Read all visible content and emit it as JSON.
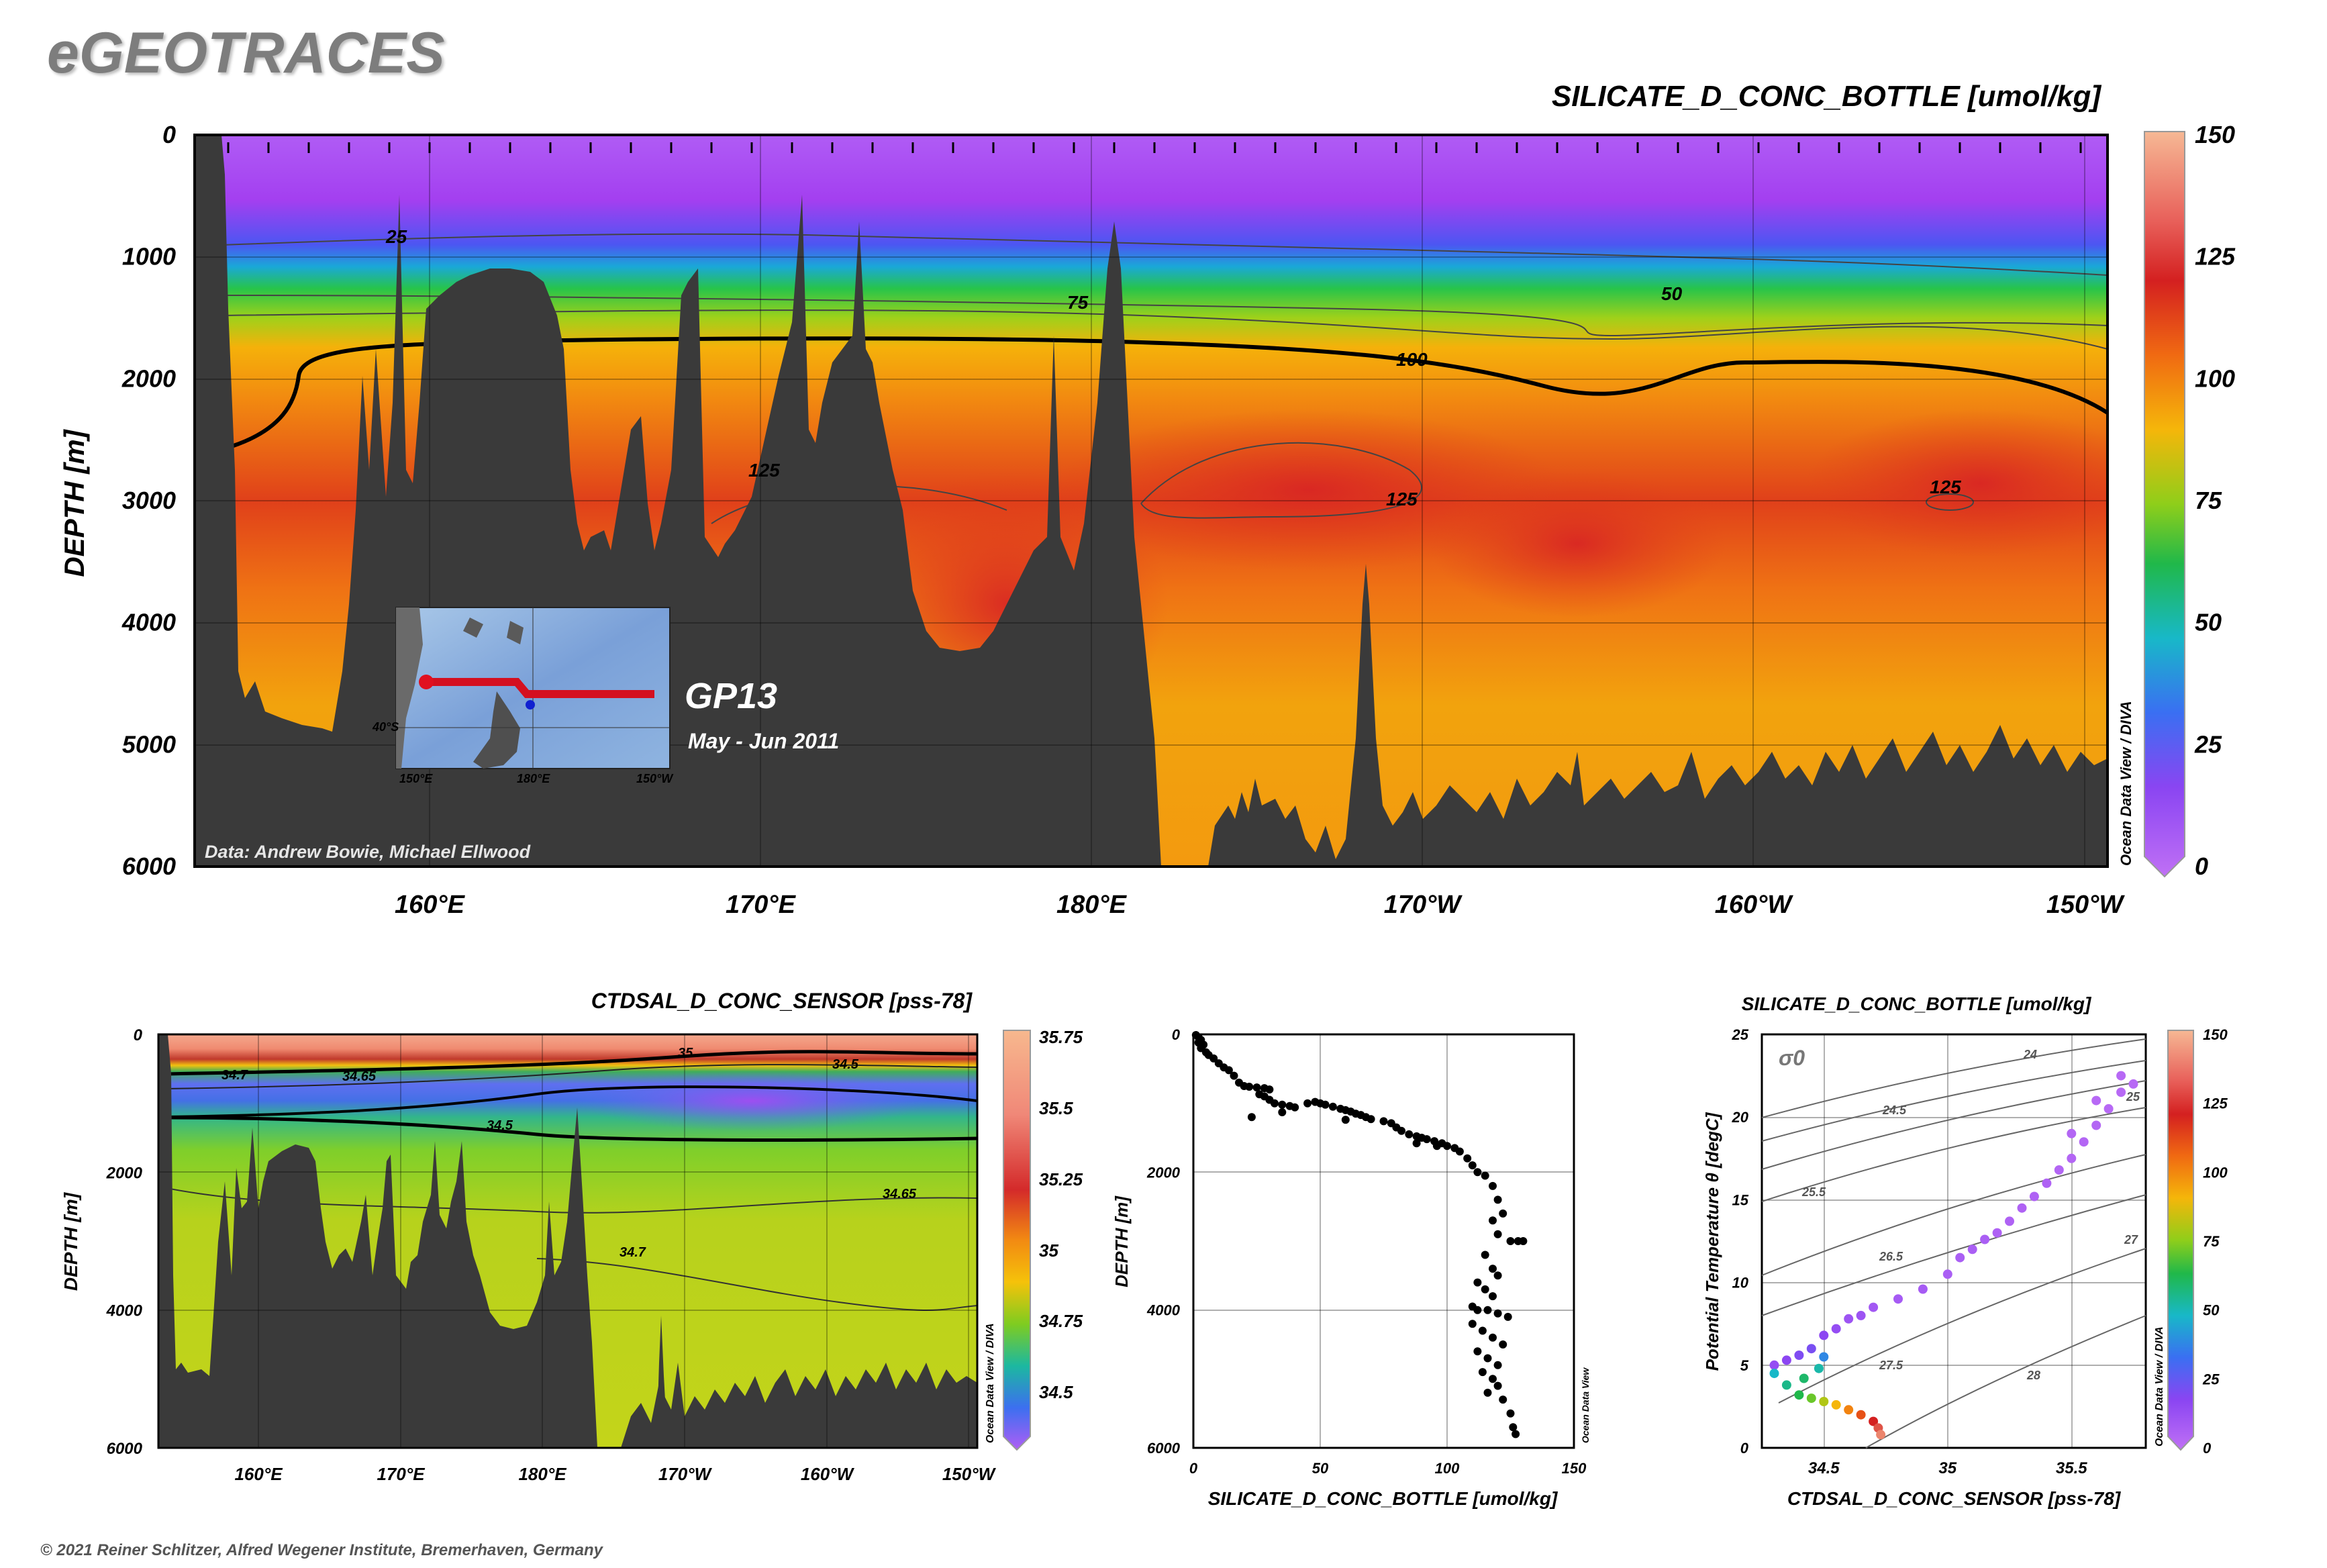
{
  "brand": {
    "logo_text": "eGEOTRACES"
  },
  "footer": {
    "copyright": "© 2021 Reiner Schlitzer, Alfred Wegener Institute, Bremerhaven, Germany"
  },
  "colors": {
    "land": "#3a3a3a",
    "background": "#ffffff",
    "frame": "#000000"
  },
  "chart_data": [
    {
      "id": "silicate_section",
      "type": "heatmap",
      "title": "SILICATE_D_CONC_BOTTLE [umol/kg]",
      "ylabel": "DEPTH [m]",
      "xlabel": "",
      "x_ticks": [
        "160°E",
        "170°E",
        "180°E",
        "170°W",
        "160°W",
        "150°W"
      ],
      "y_ticks": [
        "0",
        "1000",
        "2000",
        "3000",
        "4000",
        "5000",
        "6000"
      ],
      "ylim": [
        6000,
        0
      ],
      "colorbar": {
        "ticks": [
          "150",
          "125",
          "100",
          "75",
          "50",
          "25",
          "0"
        ],
        "range": [
          0,
          150
        ]
      },
      "contour_labels": [
        "25",
        "50",
        "75",
        "100",
        "125",
        "125",
        "125"
      ],
      "credit": "Data: Andrew Bowie, Michael Ellwood",
      "watermark": "Ocean Data View / DIVA",
      "inset": {
        "cruise": "GP13",
        "dates": "May - Jun 2011",
        "lat_label": "40°S",
        "lon_labels": [
          "150°E",
          "180°E",
          "150°W"
        ]
      }
    },
    {
      "id": "salinity_section",
      "type": "heatmap",
      "title": "CTDSAL_D_CONC_SENSOR [pss-78]",
      "ylabel": "DEPTH [m]",
      "x_ticks": [
        "160°E",
        "170°E",
        "180°E",
        "170°W",
        "160°W",
        "150°W"
      ],
      "y_ticks": [
        "0",
        "2000",
        "4000",
        "6000"
      ],
      "ylim": [
        6000,
        0
      ],
      "colorbar": {
        "ticks": [
          "35.75",
          "35.5",
          "35.25",
          "35",
          "34.75",
          "34.5"
        ],
        "range": [
          34.3,
          35.75
        ]
      },
      "contour_labels": [
        "35",
        "34.7",
        "34.65",
        "34.5",
        "34.5",
        "34.65",
        "34.7"
      ],
      "watermark": "Ocean Data View / DIVA"
    },
    {
      "id": "silicate_profile",
      "type": "scatter",
      "xlabel": "SILICATE_D_CONC_BOTTLE [umol/kg]",
      "ylabel": "DEPTH [m]",
      "x_ticks": [
        "0",
        "50",
        "100",
        "150"
      ],
      "y_ticks": [
        "0",
        "2000",
        "4000",
        "6000"
      ],
      "xlim": [
        0,
        150
      ],
      "ylim": [
        6000,
        0
      ],
      "watermark": "Ocean Data View",
      "points": [
        [
          1,
          10
        ],
        [
          2,
          40
        ],
        [
          3,
          80
        ],
        [
          2,
          120
        ],
        [
          4,
          150
        ],
        [
          3,
          200
        ],
        [
          5,
          260
        ],
        [
          6,
          300
        ],
        [
          8,
          350
        ],
        [
          10,
          420
        ],
        [
          12,
          480
        ],
        [
          14,
          520
        ],
        [
          16,
          600
        ],
        [
          18,
          700
        ],
        [
          20,
          750
        ],
        [
          22,
          760
        ],
        [
          25,
          770
        ],
        [
          28,
          780
        ],
        [
          30,
          800
        ],
        [
          26,
          870
        ],
        [
          28,
          900
        ],
        [
          30,
          950
        ],
        [
          32,
          1000
        ],
        [
          35,
          1020
        ],
        [
          38,
          1040
        ],
        [
          40,
          1060
        ],
        [
          45,
          1000
        ],
        [
          48,
          980
        ],
        [
          50,
          1000
        ],
        [
          52,
          1020
        ],
        [
          55,
          1050
        ],
        [
          58,
          1080
        ],
        [
          60,
          1100
        ],
        [
          62,
          1120
        ],
        [
          64,
          1150
        ],
        [
          66,
          1170
        ],
        [
          68,
          1200
        ],
        [
          70,
          1230
        ],
        [
          75,
          1260
        ],
        [
          78,
          1290
        ],
        [
          80,
          1350
        ],
        [
          82,
          1400
        ],
        [
          85,
          1450
        ],
        [
          88,
          1480
        ],
        [
          90,
          1500
        ],
        [
          92,
          1520
        ],
        [
          95,
          1550
        ],
        [
          98,
          1580
        ],
        [
          100,
          1620
        ],
        [
          103,
          1650
        ],
        [
          105,
          1700
        ],
        [
          108,
          1800
        ],
        [
          110,
          1900
        ],
        [
          112,
          2000
        ],
        [
          115,
          2050
        ],
        [
          118,
          2200
        ],
        [
          120,
          2400
        ],
        [
          122,
          2600
        ],
        [
          118,
          2700
        ],
        [
          120,
          2900
        ],
        [
          125,
          3000
        ],
        [
          128,
          3000
        ],
        [
          130,
          3000
        ],
        [
          115,
          3200
        ],
        [
          118,
          3400
        ],
        [
          120,
          3500
        ],
        [
          112,
          3600
        ],
        [
          115,
          3700
        ],
        [
          118,
          3800
        ],
        [
          110,
          3950
        ],
        [
          112,
          4000
        ],
        [
          116,
          4000
        ],
        [
          120,
          4050
        ],
        [
          124,
          4100
        ],
        [
          110,
          4200
        ],
        [
          114,
          4300
        ],
        [
          118,
          4400
        ],
        [
          122,
          4500
        ],
        [
          112,
          4600
        ],
        [
          116,
          4700
        ],
        [
          120,
          4800
        ],
        [
          114,
          4900
        ],
        [
          118,
          5000
        ],
        [
          120,
          5100
        ],
        [
          116,
          5200
        ],
        [
          122,
          5300
        ],
        [
          125,
          5500
        ],
        [
          126,
          5700
        ],
        [
          127,
          5800
        ],
        [
          23,
          1200
        ],
        [
          35,
          1130
        ],
        [
          60,
          1240
        ],
        [
          88,
          1580
        ],
        [
          96,
          1620
        ]
      ]
    },
    {
      "id": "ts_diagram",
      "type": "scatter",
      "title": "SILICATE_D_CONC_BOTTLE [umol/kg]",
      "xlabel": "CTDSAL_D_CONC_SENSOR [pss-78]",
      "ylabel": "Potential Temperature θ [degC]",
      "sigma_label": "σ0",
      "x_ticks": [
        "34.5",
        "35",
        "35.5"
      ],
      "y_ticks": [
        "0",
        "5",
        "10",
        "15",
        "20",
        "25"
      ],
      "xlim": [
        34.25,
        35.8
      ],
      "ylim": [
        0,
        25
      ],
      "isopycnal_labels": [
        "24",
        "24.5",
        "25",
        "25.5",
        "26.5",
        "27",
        "27.5",
        "28"
      ],
      "colorbar": {
        "ticks": [
          "150",
          "125",
          "100",
          "75",
          "50",
          "25",
          "0"
        ],
        "range": [
          0,
          150
        ]
      },
      "watermark": "Ocean Data View / DIVA",
      "points": [
        [
          34.3,
          5.0,
          10
        ],
        [
          34.35,
          5.3,
          12
        ],
        [
          34.4,
          5.6,
          14
        ],
        [
          34.45,
          6.0,
          15
        ],
        [
          34.5,
          6.8,
          12
        ],
        [
          34.55,
          7.2,
          10
        ],
        [
          34.6,
          7.8,
          8
        ],
        [
          34.65,
          8.0,
          8
        ],
        [
          34.7,
          8.5,
          7
        ],
        [
          34.8,
          9.0,
          6
        ],
        [
          34.9,
          9.6,
          6
        ],
        [
          35.0,
          10.5,
          5
        ],
        [
          35.05,
          11.5,
          5
        ],
        [
          35.1,
          12.0,
          5
        ],
        [
          35.15,
          12.6,
          5
        ],
        [
          35.2,
          13.0,
          4
        ],
        [
          35.25,
          13.7,
          4
        ],
        [
          35.3,
          14.5,
          4
        ],
        [
          35.35,
          15.2,
          4
        ],
        [
          35.4,
          16.0,
          4
        ],
        [
          35.45,
          16.8,
          3
        ],
        [
          35.5,
          17.5,
          3
        ],
        [
          35.55,
          18.5,
          3
        ],
        [
          35.6,
          19.5,
          3
        ],
        [
          35.65,
          20.5,
          2
        ],
        [
          35.7,
          21.5,
          2
        ],
        [
          35.75,
          22.0,
          2
        ],
        [
          35.7,
          22.5,
          2
        ],
        [
          35.6,
          21.0,
          2
        ],
        [
          35.5,
          19.0,
          3
        ],
        [
          34.3,
          4.5,
          40
        ],
        [
          34.35,
          3.8,
          50
        ],
        [
          34.4,
          3.2,
          60
        ],
        [
          34.45,
          3.0,
          70
        ],
        [
          34.5,
          2.8,
          80
        ],
        [
          34.55,
          2.6,
          90
        ],
        [
          34.6,
          2.3,
          100
        ],
        [
          34.65,
          2.0,
          110
        ],
        [
          34.7,
          1.6,
          120
        ],
        [
          34.72,
          1.2,
          130
        ],
        [
          34.73,
          0.8,
          140
        ],
        [
          34.5,
          5.5,
          30
        ],
        [
          34.48,
          4.8,
          45
        ],
        [
          34.42,
          4.2,
          55
        ]
      ]
    }
  ]
}
